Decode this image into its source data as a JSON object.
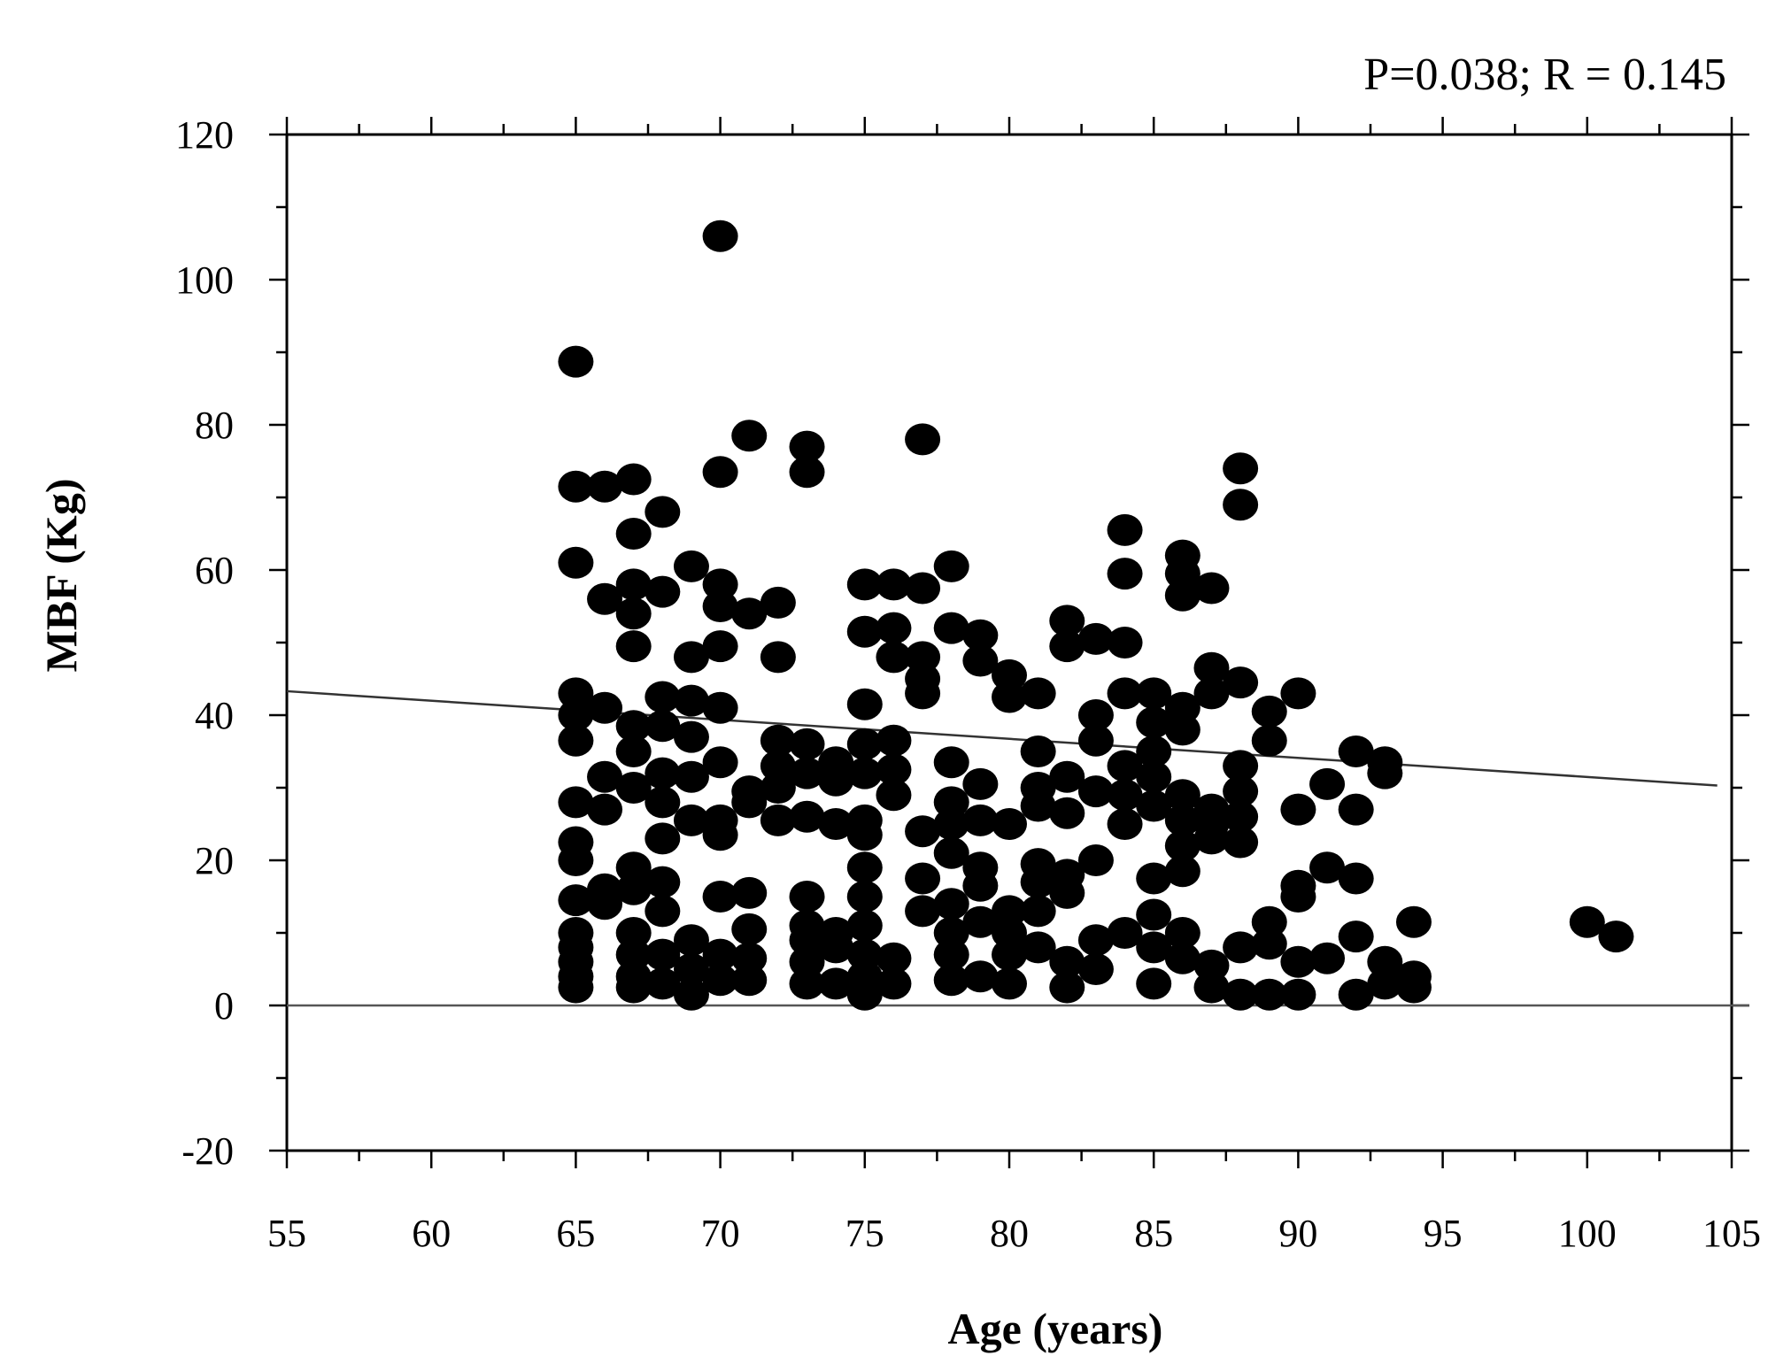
{
  "chart_data": {
    "type": "scatter",
    "title": "",
    "annotation": "P=0.038; R = 0.145",
    "xlabel": "Age (years)",
    "ylabel": "MBF (Kg)",
    "xlim": [
      55,
      105
    ],
    "ylim": [
      -20,
      120
    ],
    "xticks": [
      55,
      60,
      65,
      70,
      75,
      80,
      85,
      90,
      95,
      100,
      105
    ],
    "yticks": [
      -20,
      0,
      20,
      40,
      60,
      80,
      100,
      120
    ],
    "grid": false,
    "legend": "none",
    "marker_color": "#000000",
    "regression_line": {
      "x": [
        55,
        104.5
      ],
      "y": [
        43.3,
        30.3
      ]
    },
    "reference_line": {
      "y": 0
    },
    "points": [
      [
        65,
        88.7
      ],
      [
        65,
        71.5
      ],
      [
        65,
        61
      ],
      [
        65,
        43
      ],
      [
        65,
        40
      ],
      [
        65,
        36.5
      ],
      [
        65,
        28
      ],
      [
        65,
        22.5
      ],
      [
        65,
        20
      ],
      [
        65,
        14.5
      ],
      [
        65,
        10
      ],
      [
        65,
        8
      ],
      [
        65,
        6
      ],
      [
        65,
        4
      ],
      [
        65,
        2.5
      ],
      [
        66,
        71.5
      ],
      [
        66,
        56
      ],
      [
        66,
        41
      ],
      [
        66,
        31.5
      ],
      [
        66,
        27
      ],
      [
        66,
        16
      ],
      [
        66,
        14
      ],
      [
        67,
        72.5
      ],
      [
        67,
        65
      ],
      [
        67,
        58
      ],
      [
        67,
        54
      ],
      [
        67,
        49.5
      ],
      [
        67,
        38.5
      ],
      [
        67,
        35
      ],
      [
        67,
        30
      ],
      [
        67,
        19
      ],
      [
        67,
        16
      ],
      [
        67,
        10
      ],
      [
        67,
        7
      ],
      [
        67,
        4
      ],
      [
        67,
        2.5
      ],
      [
        68,
        68
      ],
      [
        68,
        57
      ],
      [
        68,
        42.5
      ],
      [
        68,
        38.5
      ],
      [
        68,
        32
      ],
      [
        68,
        28
      ],
      [
        68,
        23
      ],
      [
        68,
        17
      ],
      [
        68,
        13
      ],
      [
        68,
        7
      ],
      [
        68,
        3
      ],
      [
        69,
        60.5
      ],
      [
        69,
        48
      ],
      [
        69,
        42
      ],
      [
        69,
        37
      ],
      [
        69,
        31.5
      ],
      [
        69,
        25.5
      ],
      [
        69,
        9
      ],
      [
        69,
        5
      ],
      [
        69,
        1.5
      ],
      [
        70,
        106
      ],
      [
        70,
        73.5
      ],
      [
        70,
        58
      ],
      [
        70,
        55
      ],
      [
        70,
        49.5
      ],
      [
        70,
        41
      ],
      [
        70,
        33.5
      ],
      [
        70,
        25.5
      ],
      [
        70,
        23.5
      ],
      [
        70,
        15
      ],
      [
        70,
        7
      ],
      [
        70,
        3.5
      ],
      [
        71,
        78.5
      ],
      [
        71,
        54
      ],
      [
        71,
        29.5
      ],
      [
        71,
        28
      ],
      [
        71,
        15.5
      ],
      [
        71,
        10.5
      ],
      [
        71,
        6.5
      ],
      [
        71,
        3.5
      ],
      [
        72,
        55.5
      ],
      [
        72,
        48
      ],
      [
        72,
        36.5
      ],
      [
        72,
        33
      ],
      [
        72,
        30
      ],
      [
        72,
        25.5
      ],
      [
        73,
        77
      ],
      [
        73,
        73.5
      ],
      [
        73,
        36
      ],
      [
        73,
        32
      ],
      [
        73,
        26
      ],
      [
        73,
        15
      ],
      [
        73,
        11
      ],
      [
        73,
        9
      ],
      [
        73,
        6
      ],
      [
        73,
        3
      ],
      [
        74,
        33.5
      ],
      [
        74,
        31
      ],
      [
        74,
        25
      ],
      [
        74,
        10
      ],
      [
        74,
        8
      ],
      [
        74,
        3
      ],
      [
        75,
        58
      ],
      [
        75,
        51.5
      ],
      [
        75,
        41.5
      ],
      [
        75,
        36
      ],
      [
        75,
        32
      ],
      [
        75,
        25.5
      ],
      [
        75,
        23.5
      ],
      [
        75,
        19
      ],
      [
        75,
        15
      ],
      [
        75,
        11
      ],
      [
        75,
        7
      ],
      [
        75,
        4
      ],
      [
        75,
        1.5
      ],
      [
        76,
        58
      ],
      [
        76,
        52
      ],
      [
        76,
        48
      ],
      [
        76,
        36.5
      ],
      [
        76,
        32.5
      ],
      [
        76,
        29
      ],
      [
        76,
        6.5
      ],
      [
        76,
        3
      ],
      [
        77,
        78
      ],
      [
        77,
        57.5
      ],
      [
        77,
        48
      ],
      [
        77,
        45
      ],
      [
        77,
        43
      ],
      [
        77,
        24
      ],
      [
        77,
        17.5
      ],
      [
        77,
        13
      ],
      [
        78,
        60.5
      ],
      [
        78,
        52
      ],
      [
        78,
        33.5
      ],
      [
        78,
        28
      ],
      [
        78,
        25
      ],
      [
        78,
        21
      ],
      [
        78,
        14
      ],
      [
        78,
        10
      ],
      [
        78,
        7
      ],
      [
        78,
        3.5
      ],
      [
        79,
        51
      ],
      [
        79,
        47.5
      ],
      [
        79,
        30.5
      ],
      [
        79,
        25.5
      ],
      [
        79,
        19
      ],
      [
        79,
        16.5
      ],
      [
        79,
        11.5
      ],
      [
        79,
        4
      ],
      [
        80,
        45.5
      ],
      [
        80,
        42.5
      ],
      [
        80,
        25
      ],
      [
        80,
        13
      ],
      [
        80,
        10
      ],
      [
        80,
        7
      ],
      [
        80,
        3
      ],
      [
        81,
        43
      ],
      [
        81,
        35
      ],
      [
        81,
        30
      ],
      [
        81,
        27.5
      ],
      [
        81,
        19.5
      ],
      [
        81,
        17
      ],
      [
        81,
        13
      ],
      [
        81,
        8
      ],
      [
        82,
        53
      ],
      [
        82,
        49.5
      ],
      [
        82,
        31.5
      ],
      [
        82,
        26.5
      ],
      [
        82,
        18
      ],
      [
        82,
        15.5
      ],
      [
        82,
        6
      ],
      [
        82,
        2.5
      ],
      [
        83,
        50.5
      ],
      [
        83,
        40
      ],
      [
        83,
        36.5
      ],
      [
        83,
        29.5
      ],
      [
        83,
        20
      ],
      [
        83,
        9
      ],
      [
        83,
        5
      ],
      [
        84,
        65.5
      ],
      [
        84,
        59.5
      ],
      [
        84,
        50
      ],
      [
        84,
        43
      ],
      [
        84,
        33
      ],
      [
        84,
        29
      ],
      [
        84,
        25
      ],
      [
        84,
        10
      ],
      [
        85,
        43
      ],
      [
        85,
        39
      ],
      [
        85,
        35
      ],
      [
        85,
        31.5
      ],
      [
        85,
        27.5
      ],
      [
        85,
        17.5
      ],
      [
        85,
        12.5
      ],
      [
        85,
        8
      ],
      [
        85,
        3
      ],
      [
        86,
        62
      ],
      [
        86,
        59.5
      ],
      [
        86,
        56.5
      ],
      [
        86,
        41
      ],
      [
        86,
        38
      ],
      [
        86,
        29
      ],
      [
        86,
        25.5
      ],
      [
        86,
        22
      ],
      [
        86,
        18.5
      ],
      [
        86,
        10
      ],
      [
        86,
        6.5
      ],
      [
        87,
        57.5
      ],
      [
        87,
        46.5
      ],
      [
        87,
        43
      ],
      [
        87,
        27
      ],
      [
        87,
        25
      ],
      [
        87,
        23
      ],
      [
        87,
        5.5
      ],
      [
        87,
        2.5
      ],
      [
        88,
        74
      ],
      [
        88,
        69
      ],
      [
        88,
        44.5
      ],
      [
        88,
        33
      ],
      [
        88,
        29.5
      ],
      [
        88,
        26
      ],
      [
        88,
        22.5
      ],
      [
        88,
        8
      ],
      [
        88,
        1.5
      ],
      [
        89,
        40.5
      ],
      [
        89,
        36.5
      ],
      [
        89,
        11.5
      ],
      [
        89,
        8.5
      ],
      [
        89,
        1.5
      ],
      [
        90,
        43
      ],
      [
        90,
        27
      ],
      [
        90,
        16.5
      ],
      [
        90,
        15
      ],
      [
        90,
        6
      ],
      [
        90,
        1.5
      ],
      [
        91,
        30.5
      ],
      [
        91,
        19
      ],
      [
        91,
        6.5
      ],
      [
        92,
        35
      ],
      [
        92,
        27
      ],
      [
        92,
        17.5
      ],
      [
        92,
        9.5
      ],
      [
        92,
        1.5
      ],
      [
        93,
        33.5
      ],
      [
        93,
        32
      ],
      [
        93,
        6
      ],
      [
        93,
        3
      ],
      [
        94,
        11.5
      ],
      [
        94,
        4
      ],
      [
        94,
        2.5
      ],
      [
        100,
        11.5
      ],
      [
        101,
        9.5
      ]
    ]
  }
}
